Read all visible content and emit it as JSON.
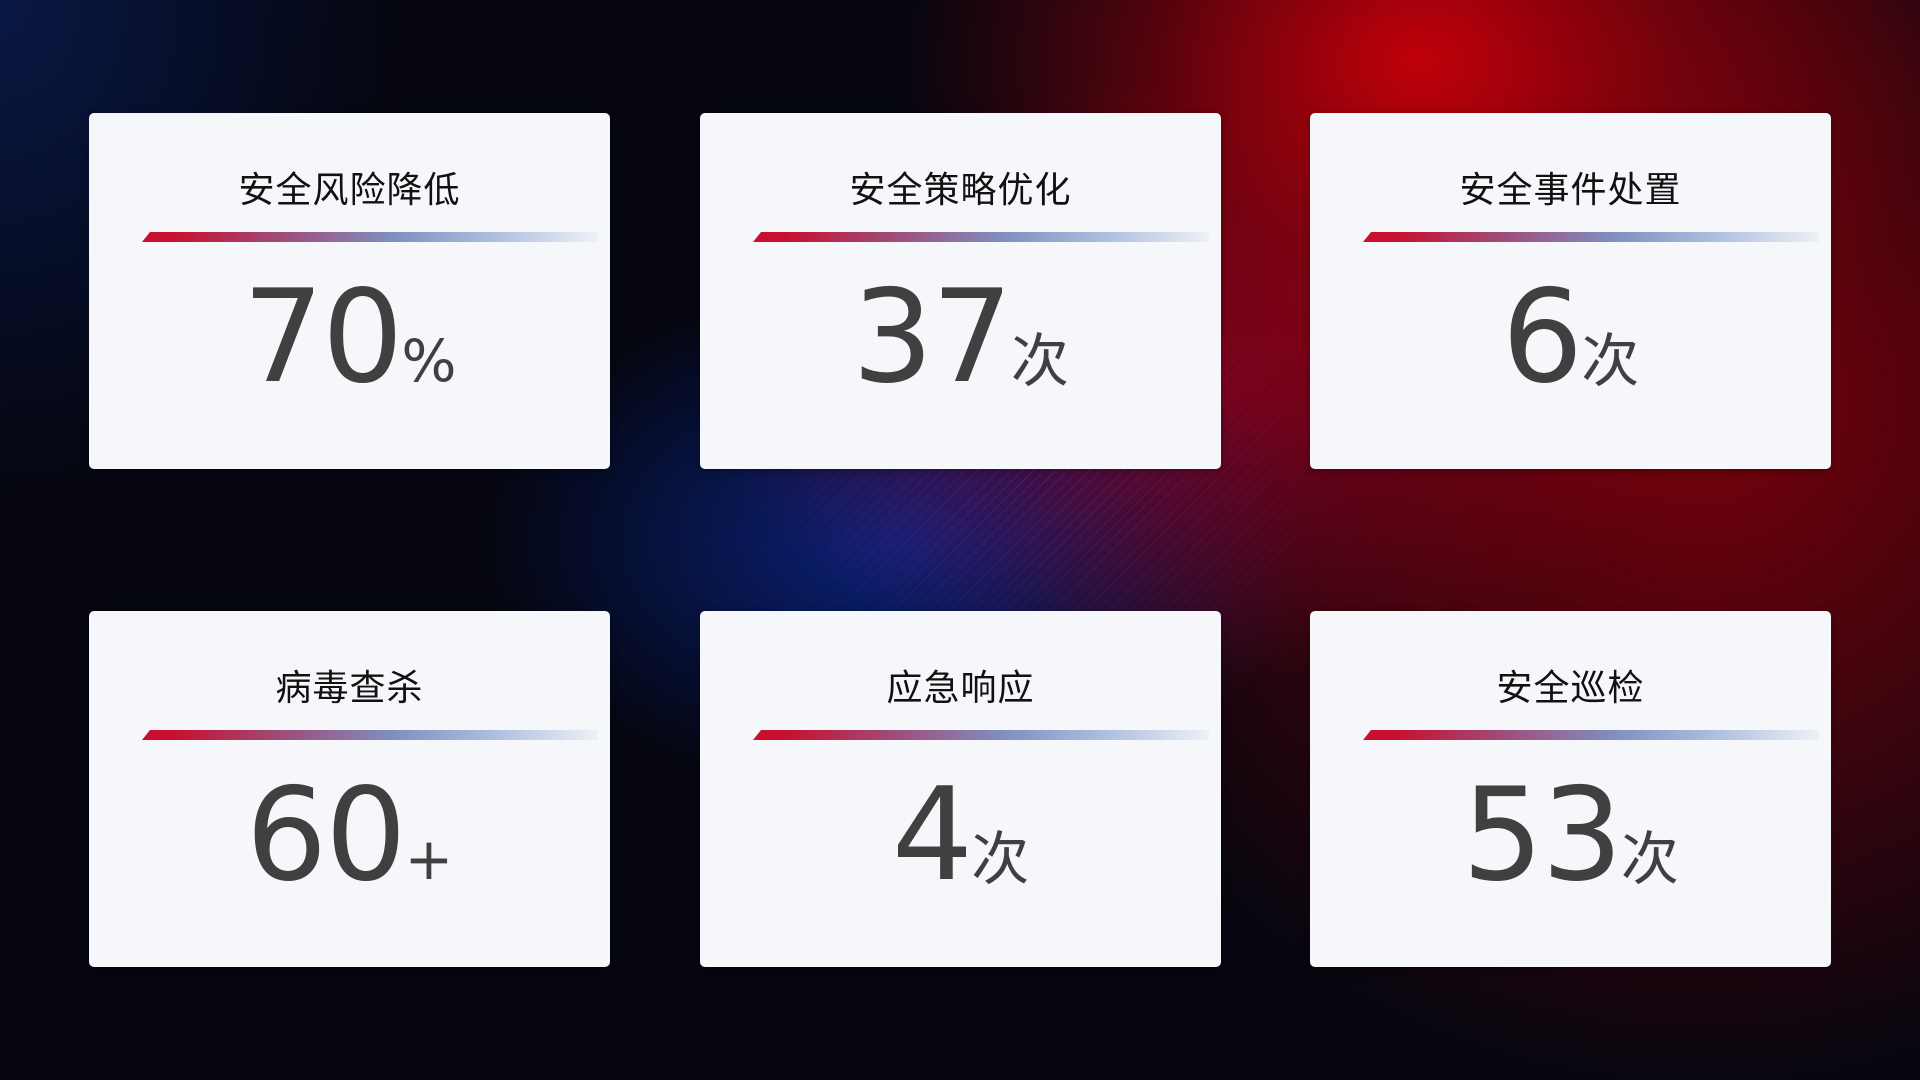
{
  "cards": [
    {
      "title": "安全风险降低",
      "value": "70",
      "unit": "%"
    },
    {
      "title": "安全策略优化",
      "value": "37",
      "unit": "次"
    },
    {
      "title": "安全事件处置",
      "value": "6",
      "unit": "次"
    },
    {
      "title": "病毒查杀",
      "value": "60",
      "unit": "+"
    },
    {
      "title": "应急响应",
      "value": "4",
      "unit": "次"
    },
    {
      "title": "安全巡检",
      "value": "53",
      "unit": "次"
    }
  ],
  "colors": {
    "accent_red": "#c8102e",
    "accent_blue": "#7f8fc0",
    "card_bg": "#f5f7fb",
    "number": "#404040"
  }
}
